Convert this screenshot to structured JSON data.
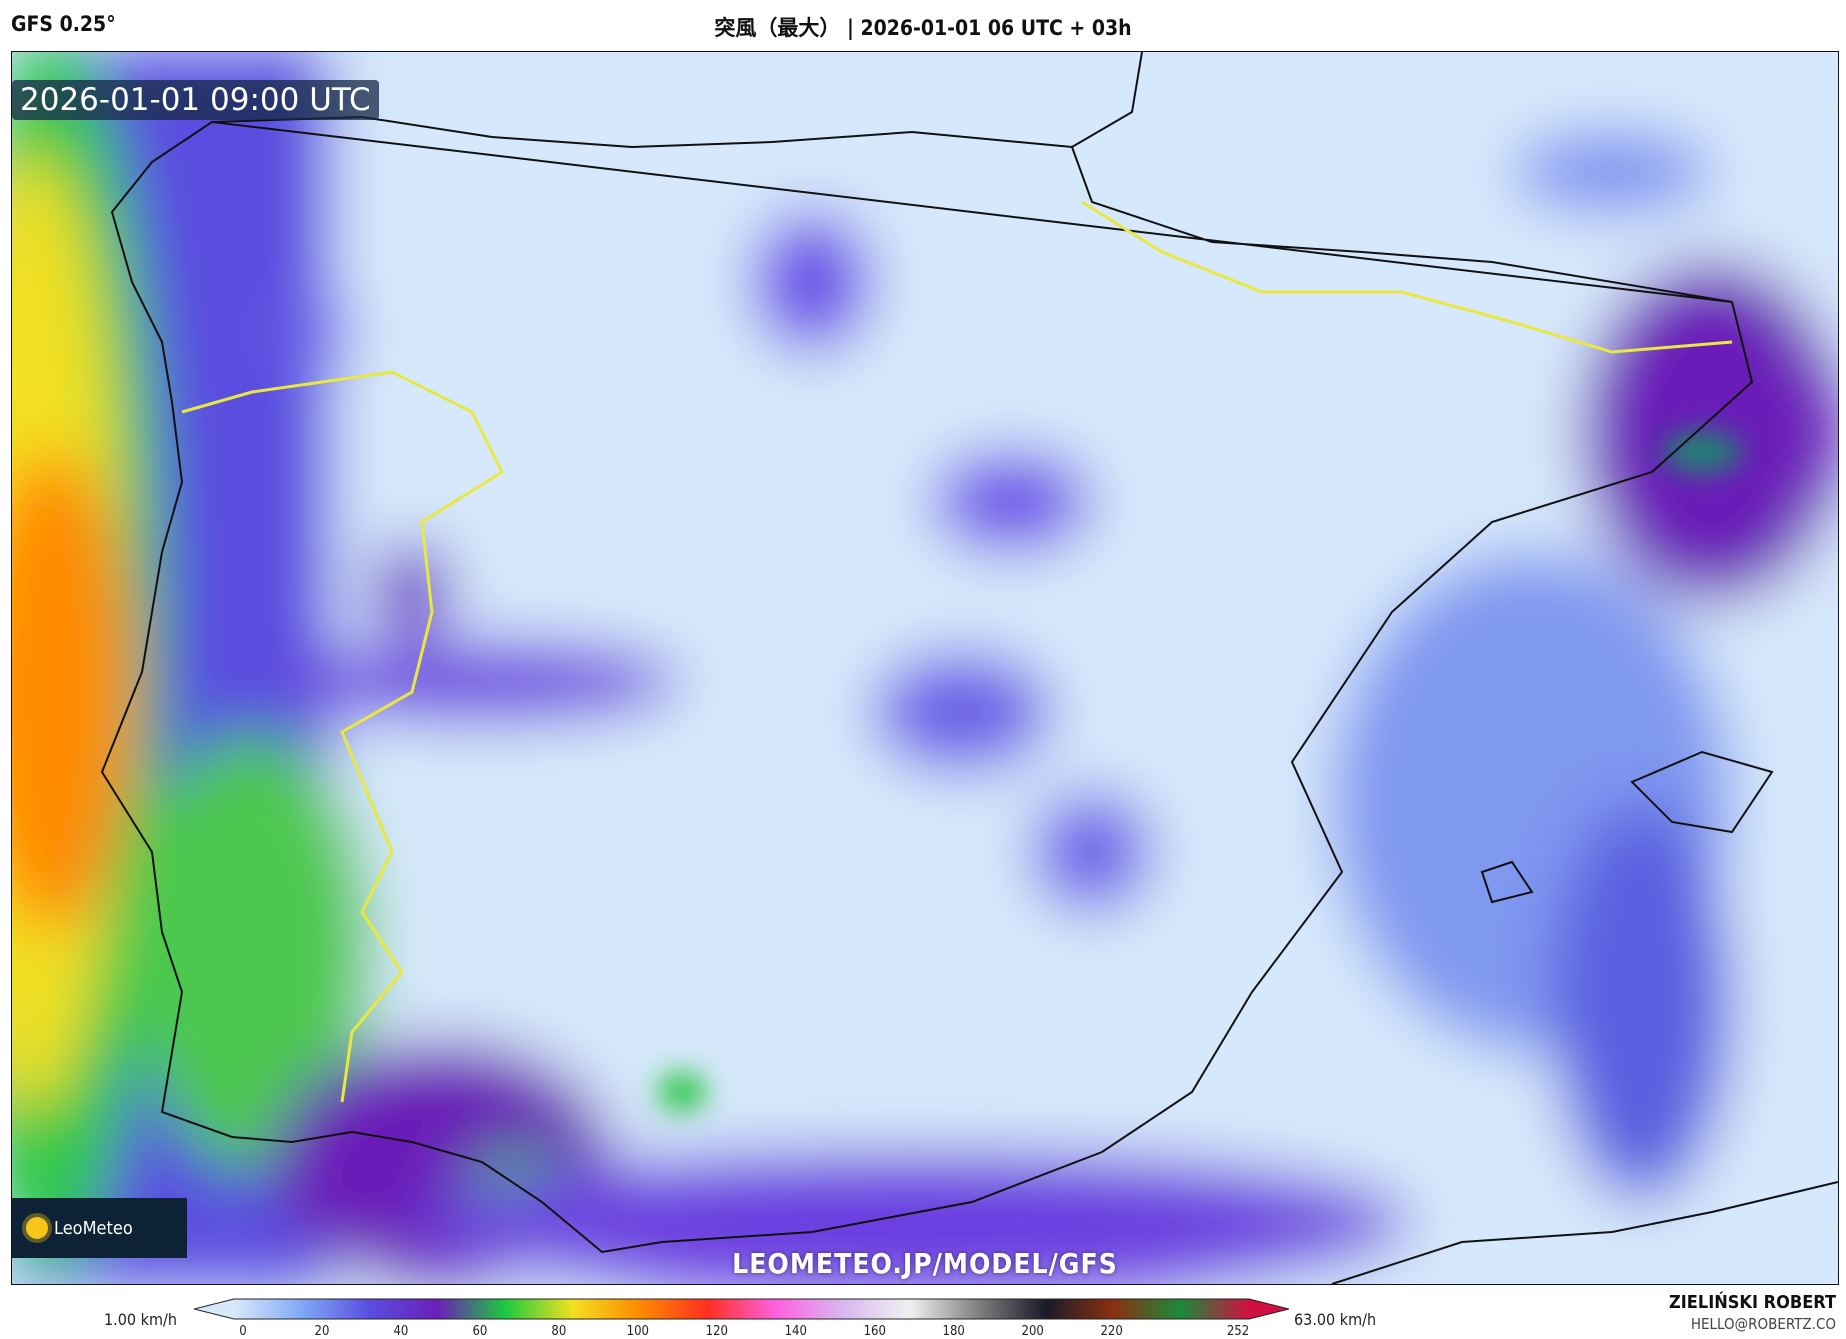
{
  "header": {
    "model": "GFS 0.25°",
    "title": "突風（最大） | 2026-01-01 06 UTC + 03h"
  },
  "map": {
    "valid_time": "2026-01-01 09:00 UTC",
    "logo_text": "LeoMeteo",
    "watermark_url": "LEOMETEO.JP/MODEL/GFS",
    "region": "Iberian Peninsula"
  },
  "colorbar": {
    "min_label": "1.00 km/h",
    "max_label": "63.00 km/h",
    "ticks": [
      "0",
      "20",
      "40",
      "60",
      "80",
      "100",
      "120",
      "140",
      "160",
      "180",
      "200",
      "220",
      "252"
    ],
    "range": [
      0,
      252
    ],
    "colors": [
      "#d8e8fb",
      "#7fa8f5",
      "#5a4ee0",
      "#6a1fb8",
      "#1ec840",
      "#f2e020",
      "#ff8a00",
      "#ff3020",
      "#ff60e0",
      "#d8b8f0",
      "#f0f0f0",
      "#808080",
      "#1a1a2a",
      "#8a3010",
      "#1a8a3a",
      "#d01040"
    ]
  },
  "credits": {
    "author": "ZIELIŃSKI ROBERT",
    "email": "HELLO@ROBERTZ.CO"
  }
}
